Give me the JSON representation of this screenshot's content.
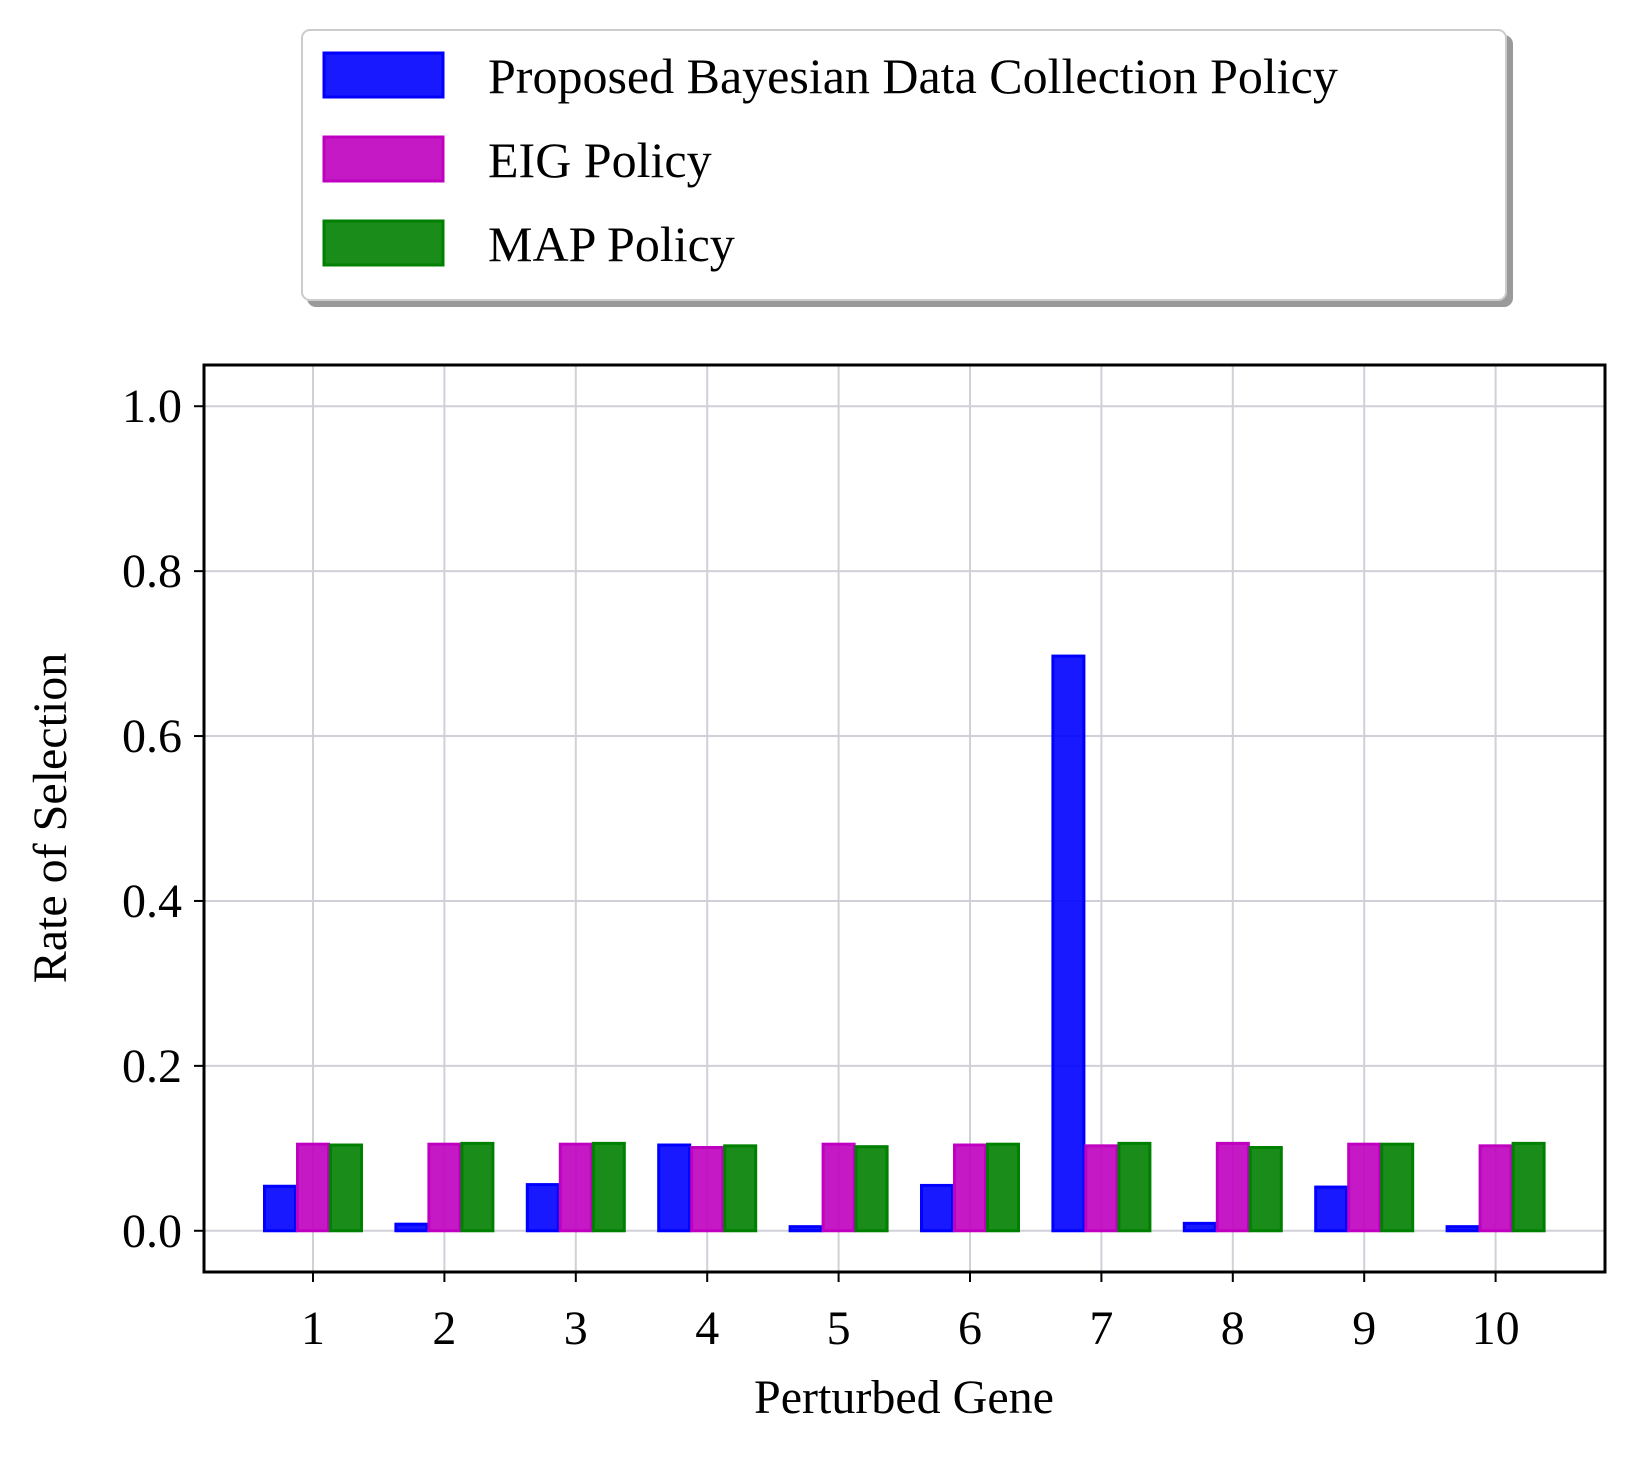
{
  "chart_data": {
    "type": "bar",
    "xlabel": "Perturbed Gene",
    "ylabel": "Rate of Selection",
    "categories": [
      "1",
      "2",
      "3",
      "4",
      "5",
      "6",
      "7",
      "8",
      "9",
      "10"
    ],
    "ylim": [
      -0.05,
      1.05
    ],
    "yticks": [
      "0.0",
      "0.2",
      "0.4",
      "0.6",
      "0.8",
      "1.0"
    ],
    "grid": true,
    "legend_position": "above plot",
    "series": [
      {
        "name": "Proposed Bayesian Data Collection Policy",
        "color": "#0000ff",
        "values": [
          0.054,
          0.008,
          0.056,
          0.104,
          0.005,
          0.055,
          0.697,
          0.009,
          0.053,
          0.005
        ]
      },
      {
        "name": "EIG Policy",
        "color": "#c000c0",
        "values": [
          0.105,
          0.105,
          0.105,
          0.101,
          0.105,
          0.104,
          0.103,
          0.106,
          0.105,
          0.103
        ]
      },
      {
        "name": "MAP Policy",
        "color": "#008000",
        "values": [
          0.104,
          0.106,
          0.106,
          0.103,
          0.102,
          0.105,
          0.106,
          0.101,
          0.105,
          0.106
        ]
      }
    ]
  }
}
